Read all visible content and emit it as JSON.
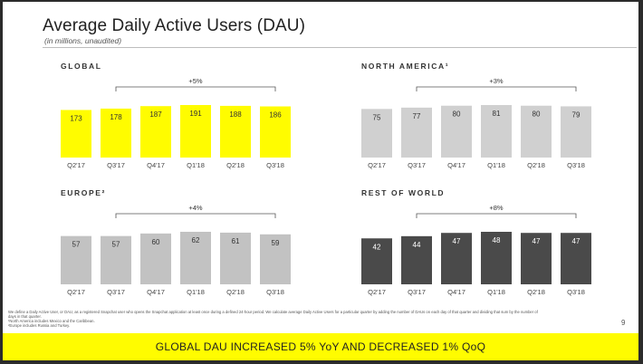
{
  "header": {
    "title": "Average Daily Active Users (DAU)",
    "subtitle": "(in millions, unaudited)"
  },
  "colors": {
    "snap_yellow": "#fffc00",
    "light_gray": "#c8c8c8",
    "dark_gray": "#4a4a4a"
  },
  "chart_data": [
    {
      "type": "bar",
      "title": "GLOBAL",
      "categories": [
        "Q2'17",
        "Q3'17",
        "Q4'17",
        "Q1'18",
        "Q2'18",
        "Q3'18"
      ],
      "values": [
        173,
        178,
        187,
        191,
        188,
        186
      ],
      "growth_label": "+5%",
      "color": "#fffc00",
      "label_color": "#333333"
    },
    {
      "type": "bar",
      "title": "NORTH AMERICA¹",
      "categories": [
        "Q2'17",
        "Q3'17",
        "Q4'17",
        "Q1'18",
        "Q2'18",
        "Q3'18"
      ],
      "values": [
        75,
        77,
        80,
        81,
        80,
        79
      ],
      "growth_label": "+3%",
      "color": "#d0d0d0",
      "label_color": "#333333"
    },
    {
      "type": "bar",
      "title": "EUROPE²",
      "categories": [
        "Q2'17",
        "Q3'17",
        "Q4'17",
        "Q1'18",
        "Q2'18",
        "Q3'18"
      ],
      "values": [
        57,
        57,
        60,
        62,
        61,
        59
      ],
      "growth_label": "+4%",
      "color": "#c2c2c2",
      "label_color": "#333333"
    },
    {
      "type": "bar",
      "title": "REST OF WORLD",
      "categories": [
        "Q2'17",
        "Q3'17",
        "Q4'17",
        "Q1'18",
        "Q2'18",
        "Q3'18"
      ],
      "values": [
        42,
        44,
        47,
        48,
        47,
        47
      ],
      "growth_label": "+8%",
      "color": "#4a4a4a",
      "label_color": "#ffffff"
    }
  ],
  "footnotes": [
    "We define a Daily Active User, or DAU, as a registered Snapchat user who opens the Snapchat application at least once during a defined 24-hour period. We calculate average Daily Active Users for a particular quarter by adding the number of DAUs on each day of that quarter and dividing that sum by the number of",
    "days in that quarter.",
    "¹North America includes Mexico and the Caribbean.",
    "²Europe includes Russia and Turkey."
  ],
  "page_number": "9",
  "banner": {
    "text": "GLOBAL DAU INCREASED 5% YoY AND DECREASED 1% QoQ"
  }
}
